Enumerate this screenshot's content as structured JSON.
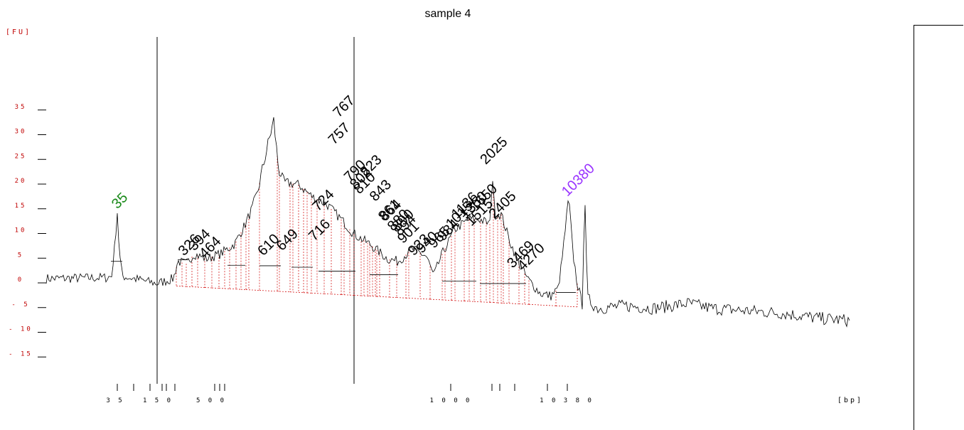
{
  "chart_data": {
    "type": "line",
    "title": "sample 4",
    "ylabel": "[FU]",
    "xlabel": "[bp]",
    "ylim": [
      -15,
      35
    ],
    "y_ticks": [
      35,
      30,
      25,
      20,
      15,
      10,
      5,
      0,
      -5,
      -10,
      -15
    ],
    "x_tick_labels": [
      "35",
      "150",
      "500",
      "1000",
      "10380"
    ],
    "marker_labels": [
      {
        "text": "35",
        "x": 35,
        "y": 14,
        "color": "#1a8a1a"
      },
      {
        "text": "326",
        "x": 326,
        "y": 4.5
      },
      {
        "text": "394",
        "x": 394,
        "y": 5.5
      },
      {
        "text": "464",
        "x": 464,
        "y": 4
      },
      {
        "text": "610",
        "x": 610,
        "y": 4.5
      },
      {
        "text": "649",
        "x": 649,
        "y": 5.5
      },
      {
        "text": "716",
        "x": 716,
        "y": 7.5
      },
      {
        "text": "724",
        "x": 724,
        "y": 13.5
      },
      {
        "text": "757",
        "x": 757,
        "y": 27
      },
      {
        "text": "767",
        "x": 767,
        "y": 32.5
      },
      {
        "text": "790",
        "x": 790,
        "y": 19.5
      },
      {
        "text": "802",
        "x": 802,
        "y": 18
      },
      {
        "text": "810",
        "x": 810,
        "y": 17
      },
      {
        "text": "823",
        "x": 823,
        "y": 20.5
      },
      {
        "text": "843",
        "x": 843,
        "y": 15.5
      },
      {
        "text": "861",
        "x": 861,
        "y": 11.5
      },
      {
        "text": "864",
        "x": 864,
        "y": 11.5
      },
      {
        "text": "880",
        "x": 880,
        "y": 9.5
      },
      {
        "text": "890",
        "x": 890,
        "y": 9.5
      },
      {
        "text": "894",
        "x": 894,
        "y": 8.5
      },
      {
        "text": "901",
        "x": 901,
        "y": 7
      },
      {
        "text": "923",
        "x": 923,
        "y": 4.5
      },
      {
        "text": "940",
        "x": 940,
        "y": 5
      },
      {
        "text": "965",
        "x": 965,
        "y": 6
      },
      {
        "text": "984",
        "x": 984,
        "y": 7.5
      },
      {
        "text": "1015",
        "x": 1015,
        "y": 10
      },
      {
        "text": "1136",
        "x": 1136,
        "y": 12
      },
      {
        "text": "1350",
        "x": 1350,
        "y": 12
      },
      {
        "text": "1515",
        "x": 1515,
        "y": 10.5
      },
      {
        "text": "1650",
        "x": 1650,
        "y": 13.5
      },
      {
        "text": "2025",
        "x": 2025,
        "y": 23
      },
      {
        "text": "2405",
        "x": 2405,
        "y": 12
      },
      {
        "text": "3469",
        "x": 3469,
        "y": 2
      },
      {
        "text": "4270",
        "x": 4270,
        "y": 1.5
      },
      {
        "text": "10380",
        "x": 10380,
        "y": 16.5,
        "color": "#9933ff"
      }
    ]
  }
}
